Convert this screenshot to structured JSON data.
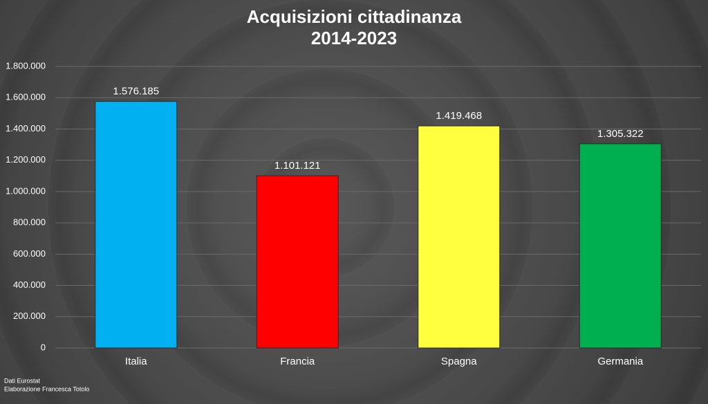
{
  "chart_data": {
    "type": "bar",
    "title": "Acquisizioni cittadinanza",
    "subtitle": "2014-2023",
    "categories": [
      "Italia",
      "Francia",
      "Spagna",
      "Germania"
    ],
    "series": [
      {
        "colors": [
          "#00b0f0",
          "#ff0000",
          "#ffff40",
          "#00b050"
        ],
        "values": [
          1576185,
          1101121,
          1419468,
          1305322
        ],
        "value_labels": [
          "1.576.185",
          "1.101.121",
          "1.419.468",
          "1.305.322"
        ]
      }
    ],
    "ylim": [
      0,
      1800000
    ],
    "yticks": [
      0,
      {
        "value": 200000,
        "label": "200.000"
      },
      {
        "value": 400000,
        "label": "400.000"
      },
      {
        "value": 600000,
        "label": "600.000"
      },
      {
        "value": 800000,
        "label": "800.000"
      },
      {
        "value": 1000000,
        "label": "1.000.000"
      },
      {
        "value": 1200000,
        "label": "1.200.000"
      },
      {
        "value": 1400000,
        "label": "1.400.000"
      },
      {
        "value": 1600000,
        "label": "1.600.000"
      },
      {
        "value": 1800000,
        "label": "1.800.000"
      }
    ],
    "grid": true,
    "notes": [
      "Dati Eurostat",
      "Elaborazione Francesca Totolo"
    ]
  }
}
